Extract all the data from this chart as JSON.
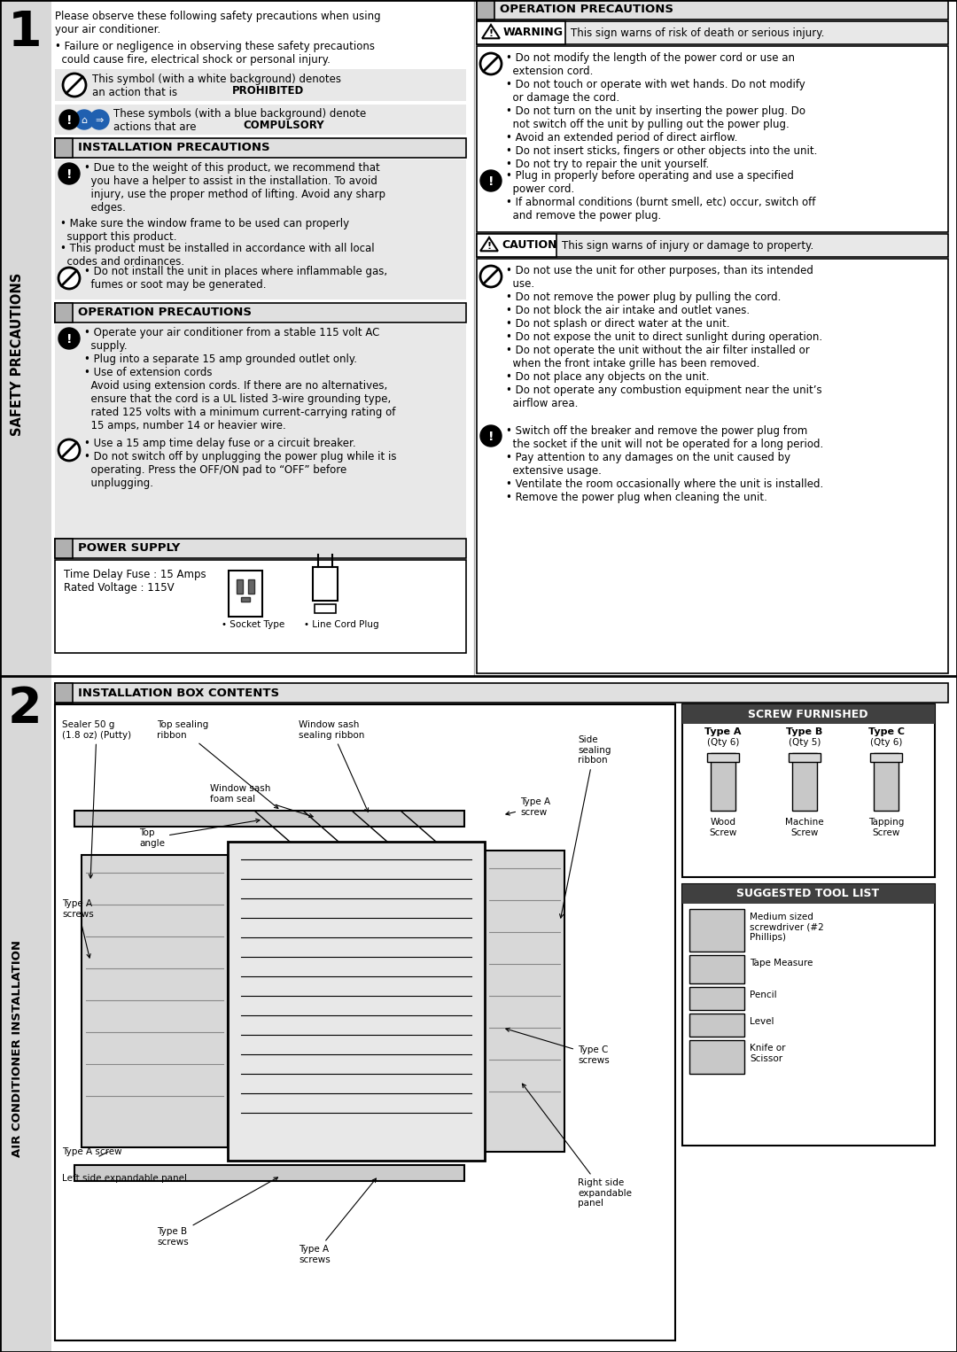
{
  "page_bg": "#ffffff",
  "sidebar_bg": "#d8d8d8",
  "section1_label": "1",
  "section2_label": "2",
  "sidebar1_text": "SAFETY PRECAUTIONS",
  "sidebar2_text": "AIR CONDITIONER INSTALLATION",
  "intro_line1": "Please observe these following safety precautions when using",
  "intro_line2": "your air conditioner.",
  "intro_bullet": "  • Failure or negligence in observing these safety precautions\n    could cause fire, electrical shock or personal injury.",
  "symbol1_text": "This symbol (with a white background) denotes\nan action that is ",
  "symbol1_bold": "PROHIBITED",
  "symbol2_text": "These symbols (with a blue background) denote\nactions that are ",
  "symbol2_bold": "COMPULSORY",
  "install_prec_title": "INSTALLATION PRECAUTIONS",
  "op_prec_left_title": "OPERATION PRECAUTIONS",
  "power_supply_title": "POWER SUPPLY",
  "op_prec_right_title": "OPERATION PRECAUTIONS",
  "warning_label": "WARNING",
  "warning_text": "This sign warns of risk of death or serious injury.",
  "caution_label": "CAUTION",
  "caution_text": "This sign warns of injury or damage to property.",
  "install_box_title": "INSTALLATION BOX CONTENTS",
  "screw_title": "SCREW FURNISHED",
  "tool_title": "SUGGESTED TOOL LIST",
  "gray_light": "#e8e8e8",
  "gray_medium": "#d0d0d0",
  "gray_dark": "#404040",
  "header_bg": "#e0e0e0",
  "header_stripe": "#b0b0b0"
}
